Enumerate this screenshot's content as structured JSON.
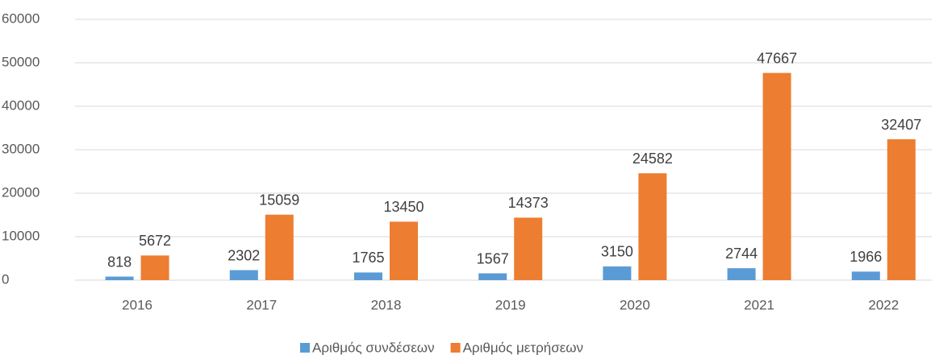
{
  "chart_data": {
    "type": "bar",
    "categories": [
      "2016",
      "2017",
      "2018",
      "2019",
      "2020",
      "2021",
      "2022"
    ],
    "series": [
      {
        "name": "Αριθμός συνδέσεων",
        "color": "#5b9bd5",
        "values": [
          818,
          2302,
          1765,
          1567,
          3150,
          2744,
          1966
        ]
      },
      {
        "name": "Αριθμός μετρήσεων",
        "color": "#ed7d31",
        "values": [
          5672,
          15059,
          13450,
          14373,
          24582,
          47667,
          32407
        ]
      }
    ],
    "ylim": [
      0,
      60000
    ],
    "yticks": [
      0,
      10000,
      20000,
      30000,
      40000,
      50000,
      60000
    ],
    "grid": true,
    "legend": "bottom"
  }
}
